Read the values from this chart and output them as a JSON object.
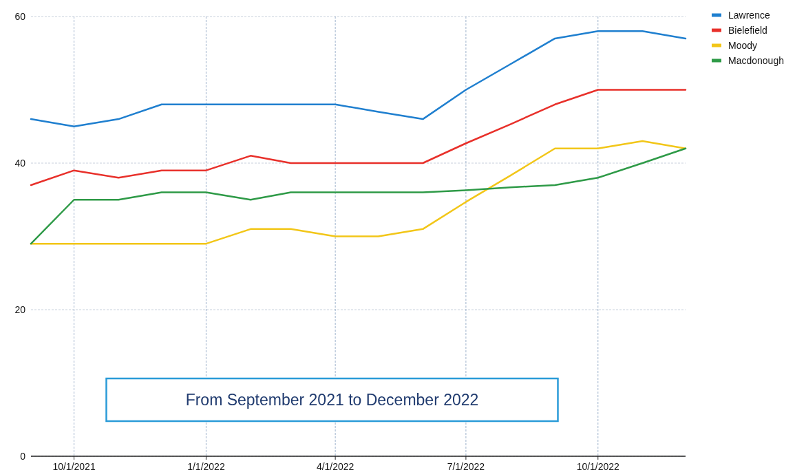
{
  "chart_data": {
    "type": "line",
    "x": [
      "2021-09-01",
      "2021-10-01",
      "2021-11-01",
      "2021-12-01",
      "2022-01-01",
      "2022-02-01",
      "2022-03-01",
      "2022-04-01",
      "2022-05-01",
      "2022-06-01",
      "2022-07-01",
      "2022-08-01",
      "2022-09-01",
      "2022-10-01",
      "2022-11-01",
      "2022-12-01"
    ],
    "series": [
      {
        "name": "Lawrence",
        "color": "#1f7fcf",
        "values": [
          46,
          45,
          46,
          48,
          48,
          48,
          48,
          48,
          47,
          46,
          50,
          53.5,
          57,
          58,
          58,
          57
        ]
      },
      {
        "name": "Bielefield",
        "color": "#e8302a",
        "values": [
          37,
          39,
          38,
          39,
          39,
          41,
          40,
          40,
          40,
          40,
          42.7,
          45.3,
          48,
          50,
          50,
          50
        ]
      },
      {
        "name": "Moody",
        "color": "#f2c618",
        "values": [
          29,
          29,
          29,
          29,
          29,
          31,
          31,
          30,
          30,
          31,
          34.7,
          38.3,
          42,
          42,
          43,
          42
        ]
      },
      {
        "name": "Macdonough",
        "color": "#2e9a47",
        "values": [
          29,
          35,
          35,
          36,
          36,
          35,
          36,
          36,
          36,
          36,
          36.3,
          36.7,
          37,
          38,
          40,
          42
        ]
      }
    ],
    "xlim": [
      "2021-09-01",
      "2022-12-01"
    ],
    "xticks": [
      {
        "value": "2021-10-01",
        "label": "10/1/2021"
      },
      {
        "value": "2022-01-01",
        "label": "1/1/2022"
      },
      {
        "value": "2022-04-01",
        "label": "4/1/2022"
      },
      {
        "value": "2022-07-01",
        "label": "7/1/2022"
      },
      {
        "value": "2022-10-01",
        "label": "10/1/2022"
      }
    ],
    "ylim": [
      0,
      60
    ],
    "yticks": [
      0,
      20,
      40,
      60
    ],
    "grid": true,
    "legend": "top right",
    "marker": "none",
    "line_style": "solid",
    "annotations": [
      "From September 2021 to December 2022"
    ]
  }
}
